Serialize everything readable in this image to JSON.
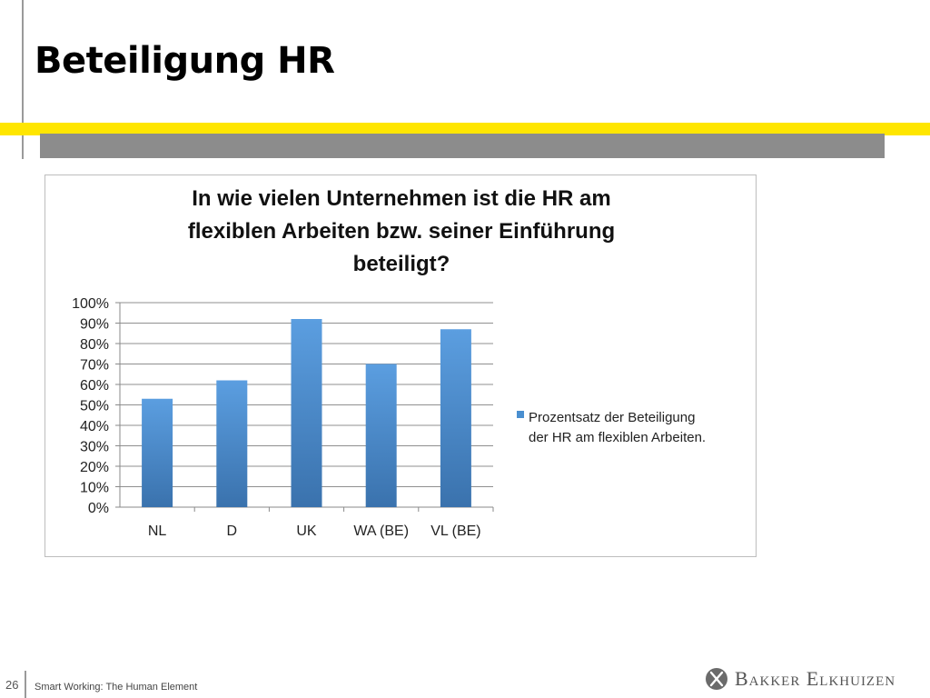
{
  "slide": {
    "title": "Beteiligung HR",
    "page_number": "26",
    "footer_text": "Smart Working: The Human Element",
    "brand_name": "Bakker Elkhuizen",
    "colors": {
      "accent_yellow": "#ffe600",
      "band_gray": "#8c8c8c"
    }
  },
  "chart_data": {
    "type": "bar",
    "title_lines": [
      "In wie vielen Unternehmen ist die HR am",
      "flexiblen Arbeiten bzw. seiner Einführung",
      "beteiligt?"
    ],
    "categories": [
      "NL",
      "D",
      "UK",
      "WA (BE)",
      "VL (BE)"
    ],
    "series": [
      {
        "name": "Prozentsatz der Beteiligung der HR am flexiblen Arbeiten.",
        "values": [
          53,
          62,
          92,
          70,
          87
        ],
        "color": "#4a8fd0"
      }
    ],
    "legend_lines": [
      "Prozentsatz der Beteiligung",
      "der HR am flexiblen Arbeiten."
    ],
    "y_ticks": [
      "0%",
      "10%",
      "20%",
      "30%",
      "40%",
      "50%",
      "60%",
      "70%",
      "80%",
      "90%",
      "100%"
    ],
    "ylim": [
      0,
      100
    ],
    "grid": true,
    "legend_position": "right"
  }
}
